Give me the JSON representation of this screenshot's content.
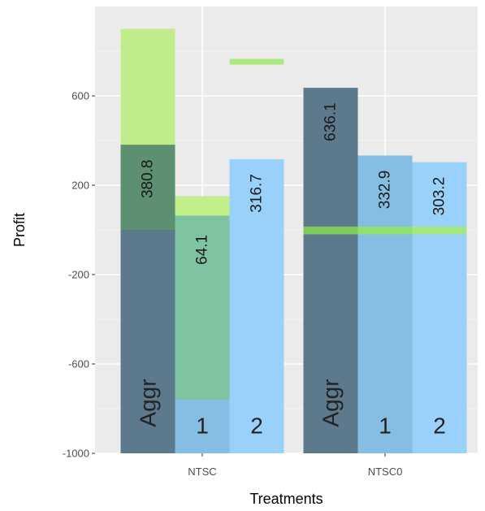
{
  "chart_data": {
    "type": "bar",
    "xlabel": "Treatments",
    "ylabel": "Profit",
    "ylim": [
      -1000,
      1000
    ],
    "yticks": [
      -1000,
      -600,
      -200,
      200,
      600
    ],
    "grid": true,
    "legend": "none",
    "categories": [
      "NTSC",
      "NTSC0"
    ],
    "bars": [
      {
        "category": "NTSC",
        "label": "Aggr",
        "value": 380.8,
        "value_label": "380.8",
        "range_high": 900,
        "range_low": -1000,
        "band": [
          380.8,
          900
        ],
        "band_color": "#c5f28a",
        "fill": "#5d7a8c",
        "band_opacity": 0.95,
        "body_opacity": 1.0
      },
      {
        "category": "NTSC",
        "label": "1",
        "value": 64.1,
        "value_label": "64.1",
        "range_high": 150,
        "range_low": -760,
        "band": [
          64.1,
          150
        ],
        "band_color": "#c5f28a",
        "fill": "#7ec4a0",
        "band_opacity": 0.95,
        "body_opacity": 1.0
      },
      {
        "category": "NTSC",
        "label": "2",
        "value": 316.7,
        "value_label": "316.7",
        "range_high": 316.7,
        "range_low": -1000,
        "band": [
          740,
          765
        ],
        "band_color": "#a8e878",
        "fill": "#99d1fb",
        "band_opacity": 0.95,
        "body_opacity": 1.0
      },
      {
        "category": "NTSC0",
        "label": "Aggr",
        "value": 636.1,
        "value_label": "636.1",
        "range_high": 636.1,
        "range_low": -1000,
        "band": [
          -20,
          15
        ],
        "band_color": "#7ed05a",
        "fill": "#5d7a8c",
        "band_opacity": 0.95,
        "body_opacity": 1.0
      },
      {
        "category": "NTSC0",
        "label": "1",
        "value": 332.9,
        "value_label": "332.9",
        "range_high": 332.9,
        "range_low": -1000,
        "band": [
          -20,
          15
        ],
        "band_color": "#8fe06a",
        "fill": "#86bde3",
        "band_opacity": 0.95,
        "body_opacity": 1.0
      },
      {
        "category": "NTSC0",
        "label": "2",
        "value": 303.2,
        "value_label": "303.2",
        "range_high": 303.2,
        "range_low": -1000,
        "band": [
          -20,
          15
        ],
        "band_color": "#a8e878",
        "fill": "#99d1fb",
        "band_opacity": 0.95,
        "body_opacity": 1.0
      }
    ],
    "overlays": [
      {
        "category": "NTSC",
        "bar": 0,
        "from": -1000,
        "to": 0,
        "color": "#5d7a8c"
      },
      {
        "category": "NTSC",
        "bar": 0,
        "from": 0,
        "to": 380.8,
        "color": "#5c9070"
      },
      {
        "category": "NTSC",
        "bar": 1,
        "from": -1000,
        "to": -760,
        "color": "#86bde3"
      }
    ]
  }
}
